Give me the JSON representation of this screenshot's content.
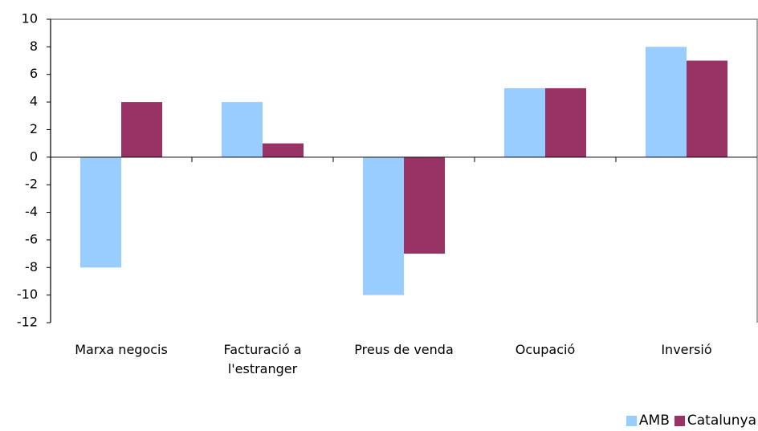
{
  "chart_data": {
    "type": "bar",
    "categories": [
      "Marxa negocis",
      "Facturació a l'estranger",
      "Preus de venda",
      "Ocupació",
      "Inversió"
    ],
    "series": [
      {
        "name": "AMB",
        "color": "#99ccff",
        "values": [
          -8,
          4,
          -10,
          5,
          8
        ]
      },
      {
        "name": "Catalunya",
        "color": "#993366",
        "values": [
          4,
          1,
          -7,
          5,
          7
        ]
      }
    ],
    "ylim": [
      -12,
      10
    ],
    "yticks": [
      -12,
      -10,
      -8,
      -6,
      -4,
      -2,
      0,
      2,
      4,
      6,
      8,
      10
    ]
  }
}
